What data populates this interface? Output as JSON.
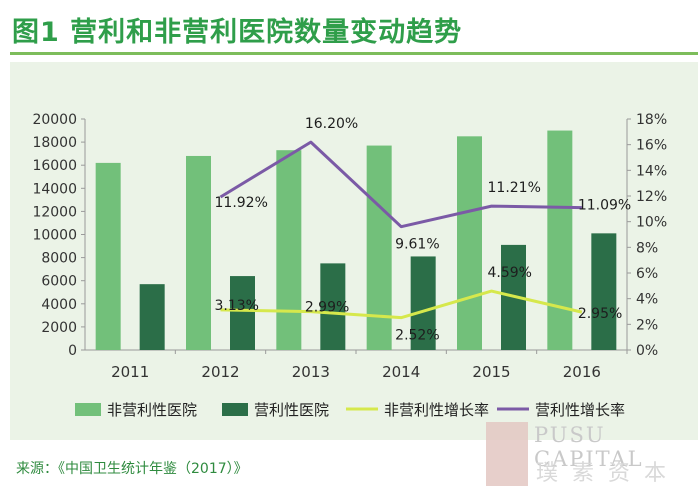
{
  "figure": {
    "title": "图1  营利和非营利医院数量变动趋势",
    "source": "来源：《中国卫生统计年鉴（2017）》",
    "watermark_en": "PUSU CAPITAL",
    "watermark_cn": "璞素资本",
    "colors": {
      "background": "#ebf3e7",
      "title": "#2f9e4a",
      "nonprofit_bar": "#72c07a",
      "forprofit_bar": "#2b6e48",
      "nonprofit_line": "#d6e84c",
      "forprofit_line": "#7b5aa6"
    }
  },
  "chart_data": {
    "type": "bar",
    "categories": [
      "2011",
      "2012",
      "2013",
      "2014",
      "2015",
      "2016"
    ],
    "left_axis": {
      "ylim": [
        0,
        20000
      ],
      "ticks": [
        "0",
        "2000",
        "4000",
        "6000",
        "8000",
        "10000",
        "12000",
        "14000",
        "16000",
        "18000",
        "20000"
      ]
    },
    "right_axis": {
      "ylim": [
        0,
        18
      ],
      "ticks": [
        "0%",
        "2%",
        "4%",
        "6%",
        "8%",
        "10%",
        "12%",
        "14%",
        "16%",
        "18%"
      ]
    },
    "grid": false,
    "legend_position": "bottom",
    "series": [
      {
        "name": "非营利性医院",
        "type": "bar",
        "axis": "left",
        "values": [
          16200,
          16800,
          17300,
          17700,
          18500,
          19000
        ]
      },
      {
        "name": "营利性医院",
        "type": "bar",
        "axis": "left",
        "values": [
          5700,
          6400,
          7500,
          8100,
          9100,
          10100
        ]
      },
      {
        "name": "非营利性增长率",
        "type": "line",
        "axis": "right",
        "values": [
          null,
          3.13,
          2.99,
          2.52,
          4.59,
          2.95
        ],
        "labels": [
          null,
          "3.13%",
          "2.99%",
          "2.52%",
          "4.59%",
          "2.95%"
        ]
      },
      {
        "name": "营利性增长率",
        "type": "line",
        "axis": "right",
        "values": [
          null,
          11.92,
          16.2,
          9.61,
          11.21,
          11.09
        ],
        "labels": [
          null,
          "11.92%",
          "16.20%",
          "9.61%",
          "11.21%",
          "11.09%"
        ]
      }
    ]
  }
}
